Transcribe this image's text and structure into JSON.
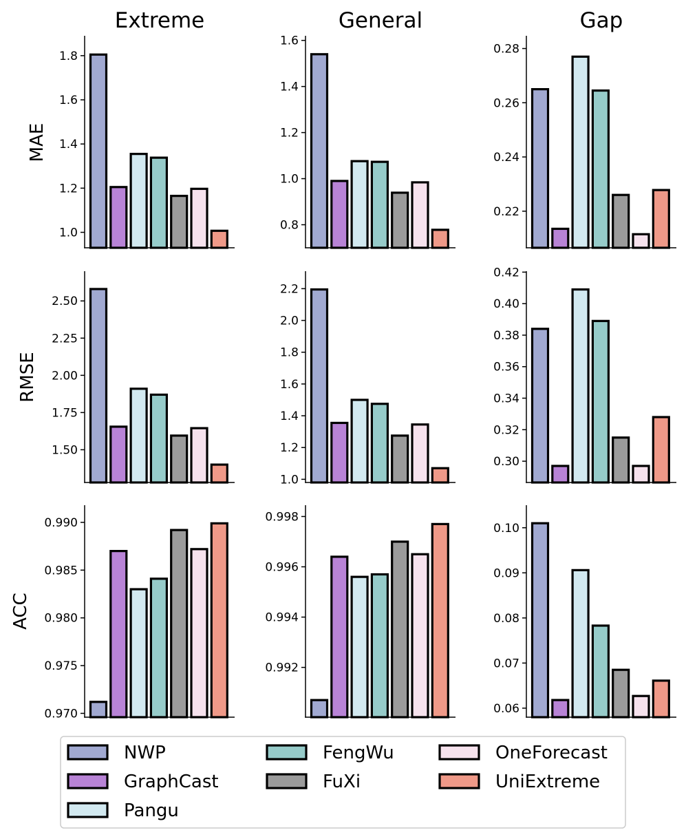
{
  "column_titles": [
    "Extreme",
    "General",
    "Gap"
  ],
  "row_titles": [
    "MAE",
    "RMSE",
    "ACC"
  ],
  "legend": {
    "items": [
      {
        "name": "NWP",
        "color": "#a1a9d1"
      },
      {
        "name": "GraphCast",
        "color": "#b883d6"
      },
      {
        "name": "Pangu",
        "color": "#d2e9f0"
      },
      {
        "name": "FengWu",
        "color": "#96cbc9"
      },
      {
        "name": "FuXi",
        "color": "#9b9b9b"
      },
      {
        "name": "OneForecast",
        "color": "#f6e2ed"
      },
      {
        "name": "UniExtreme",
        "color": "#ef9988"
      }
    ]
  },
  "chart_data": [
    {
      "type": "bar",
      "row": "MAE",
      "column": "Extreme",
      "categories": [
        "NWP",
        "GraphCast",
        "Pangu",
        "FengWu",
        "FuXi",
        "OneForecast",
        "UniExtreme"
      ],
      "values": [
        1.805,
        1.205,
        1.355,
        1.338,
        1.165,
        1.197,
        1.007
      ],
      "ylim": [
        0.93,
        1.89
      ],
      "yticks": [
        "1.0",
        "1.2",
        "1.4",
        "1.6",
        "1.8"
      ]
    },
    {
      "type": "bar",
      "row": "MAE",
      "column": "General",
      "categories": [
        "NWP",
        "GraphCast",
        "Pangu",
        "FengWu",
        "FuXi",
        "OneForecast",
        "UniExtreme"
      ],
      "values": [
        1.54,
        0.99,
        1.076,
        1.073,
        0.939,
        0.984,
        0.778
      ],
      "ylim": [
        0.7,
        1.62
      ],
      "yticks": [
        "0.8",
        "1.0",
        "1.2",
        "1.4",
        "1.6"
      ]
    },
    {
      "type": "bar",
      "row": "MAE",
      "column": "Gap",
      "categories": [
        "NWP",
        "GraphCast",
        "Pangu",
        "FengWu",
        "FuXi",
        "OneForecast",
        "UniExtreme"
      ],
      "values": [
        0.265,
        0.2135,
        0.277,
        0.2645,
        0.226,
        0.2115,
        0.2278
      ],
      "ylim": [
        0.2065,
        0.2847
      ],
      "yticks": [
        "0.22",
        "0.24",
        "0.26",
        "0.28"
      ]
    },
    {
      "type": "bar",
      "row": "RMSE",
      "column": "Extreme",
      "categories": [
        "NWP",
        "GraphCast",
        "Pangu",
        "FengWu",
        "FuXi",
        "OneForecast",
        "UniExtreme"
      ],
      "values": [
        2.58,
        1.655,
        1.91,
        1.87,
        1.595,
        1.645,
        1.4
      ],
      "ylim": [
        1.28,
        2.7
      ],
      "yticks": [
        "1.50",
        "1.75",
        "2.00",
        "2.25",
        "2.50"
      ]
    },
    {
      "type": "bar",
      "row": "RMSE",
      "column": "General",
      "categories": [
        "NWP",
        "GraphCast",
        "Pangu",
        "FengWu",
        "FuXi",
        "OneForecast",
        "UniExtreme"
      ],
      "values": [
        2.195,
        1.355,
        1.5,
        1.475,
        1.275,
        1.345,
        1.07
      ],
      "ylim": [
        0.98,
        2.31
      ],
      "yticks": [
        "1.0",
        "1.2",
        "1.4",
        "1.6",
        "1.8",
        "2.0",
        "2.2"
      ]
    },
    {
      "type": "bar",
      "row": "RMSE",
      "column": "Gap",
      "categories": [
        "NWP",
        "GraphCast",
        "Pangu",
        "FengWu",
        "FuXi",
        "OneForecast",
        "UniExtreme"
      ],
      "values": [
        0.384,
        0.297,
        0.409,
        0.389,
        0.315,
        0.297,
        0.328
      ],
      "ylim": [
        0.2865,
        0.4206
      ],
      "yticks": [
        "0.30",
        "0.32",
        "0.34",
        "0.36",
        "0.38",
        "0.40",
        "0.42"
      ]
    },
    {
      "type": "bar",
      "row": "ACC",
      "column": "Extreme",
      "categories": [
        "NWP",
        "GraphCast",
        "Pangu",
        "FengWu",
        "FuXi",
        "OneForecast",
        "UniExtreme"
      ],
      "values": [
        0.9712,
        0.987,
        0.983,
        0.9841,
        0.9892,
        0.9872,
        0.9899
      ],
      "ylim": [
        0.9696,
        0.9918
      ],
      "yticks": [
        "0.970",
        "0.975",
        "0.980",
        "0.985",
        "0.990"
      ]
    },
    {
      "type": "bar",
      "row": "ACC",
      "column": "General",
      "categories": [
        "NWP",
        "GraphCast",
        "Pangu",
        "FengWu",
        "FuXi",
        "OneForecast",
        "UniExtreme"
      ],
      "values": [
        0.9907,
        0.9964,
        0.9956,
        0.9957,
        0.997,
        0.9965,
        0.9977
      ],
      "ylim": [
        0.99002,
        0.99845
      ],
      "yticks": [
        "0.992",
        "0.994",
        "0.996",
        "0.998"
      ]
    },
    {
      "type": "bar",
      "row": "ACC",
      "column": "Gap",
      "categories": [
        "NWP",
        "GraphCast",
        "Pangu",
        "FengWu",
        "FuXi",
        "OneForecast",
        "UniExtreme"
      ],
      "values": [
        0.101,
        0.0618,
        0.0906,
        0.0783,
        0.0685,
        0.0627,
        0.0661
      ],
      "ylim": [
        0.058,
        0.105
      ],
      "yticks": [
        "0.06",
        "0.07",
        "0.08",
        "0.09",
        "0.10"
      ]
    }
  ]
}
